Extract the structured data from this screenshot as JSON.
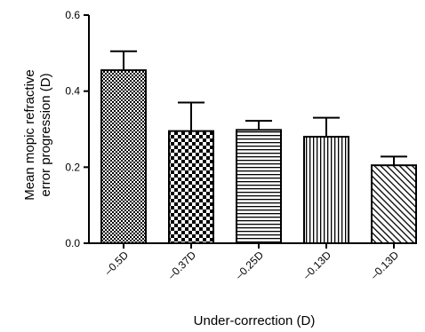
{
  "chart_data": {
    "type": "bar",
    "title": "",
    "xlabel": "Under-correction (D)",
    "ylabel": [
      "Mean mopic refractive",
      "error progression (D)"
    ],
    "categories": [
      "–0.5D",
      "–0.37D",
      "–0.25D",
      "–0.13D",
      "–0.13D"
    ],
    "values": [
      0.455,
      0.295,
      0.298,
      0.28,
      0.205
    ],
    "error_upper": [
      0.505,
      0.37,
      0.322,
      0.33,
      0.228
    ],
    "ylim": [
      0,
      0.6
    ],
    "yticks": [
      0.0,
      0.2,
      0.4,
      0.6
    ],
    "ytick_labels": [
      "0.0",
      "0.2",
      "0.4",
      "0.6"
    ],
    "patterns": [
      "fine-checker",
      "coarse-checker",
      "horizontal-lines",
      "vertical-lines",
      "diagonal-lines"
    ],
    "grid": false,
    "legend": "none",
    "colors": {
      "bar_stroke": "#000000",
      "pattern": "#000000",
      "background": "#ffffff"
    }
  }
}
